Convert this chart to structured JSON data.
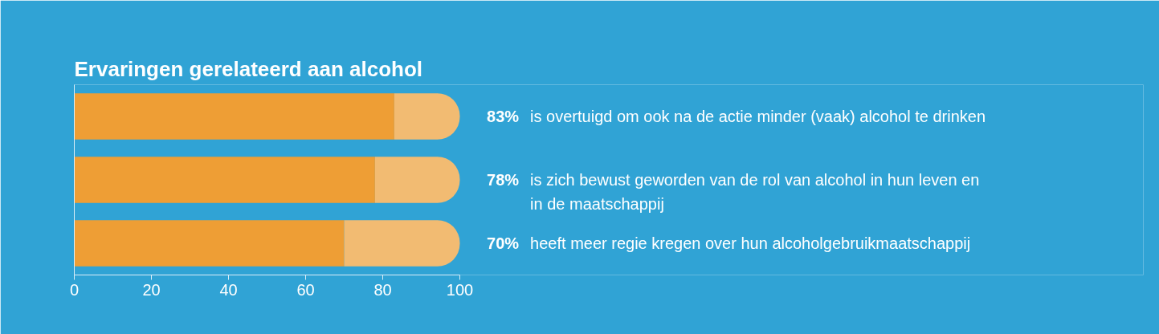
{
  "chart_data": {
    "type": "bar",
    "orientation": "horizontal",
    "stacked": true,
    "title": "Ervaringen gerelateerd aan alcohol",
    "categories": [
      "is overtuigd om ook na de actie minder (vaak) alcohol te drinken",
      "is zich bewust geworden van de rol van alcohol in hun leven en in de maatschappij",
      "heeft meer regie kregen over hun alcoholgebruikmaatschappij"
    ],
    "series": [
      {
        "color": "#ee9e35",
        "values": [
          83,
          78,
          70
        ],
        "value_labels": [
          "83%",
          "78%",
          "70%"
        ]
      },
      {
        "color": "#f2bb72",
        "values": [
          17,
          22,
          30
        ]
      }
    ],
    "xlim": [
      0,
      100
    ],
    "xticks": [
      0,
      20,
      40,
      60,
      80,
      100
    ],
    "tick_labels": "x",
    "grid": false
  }
}
